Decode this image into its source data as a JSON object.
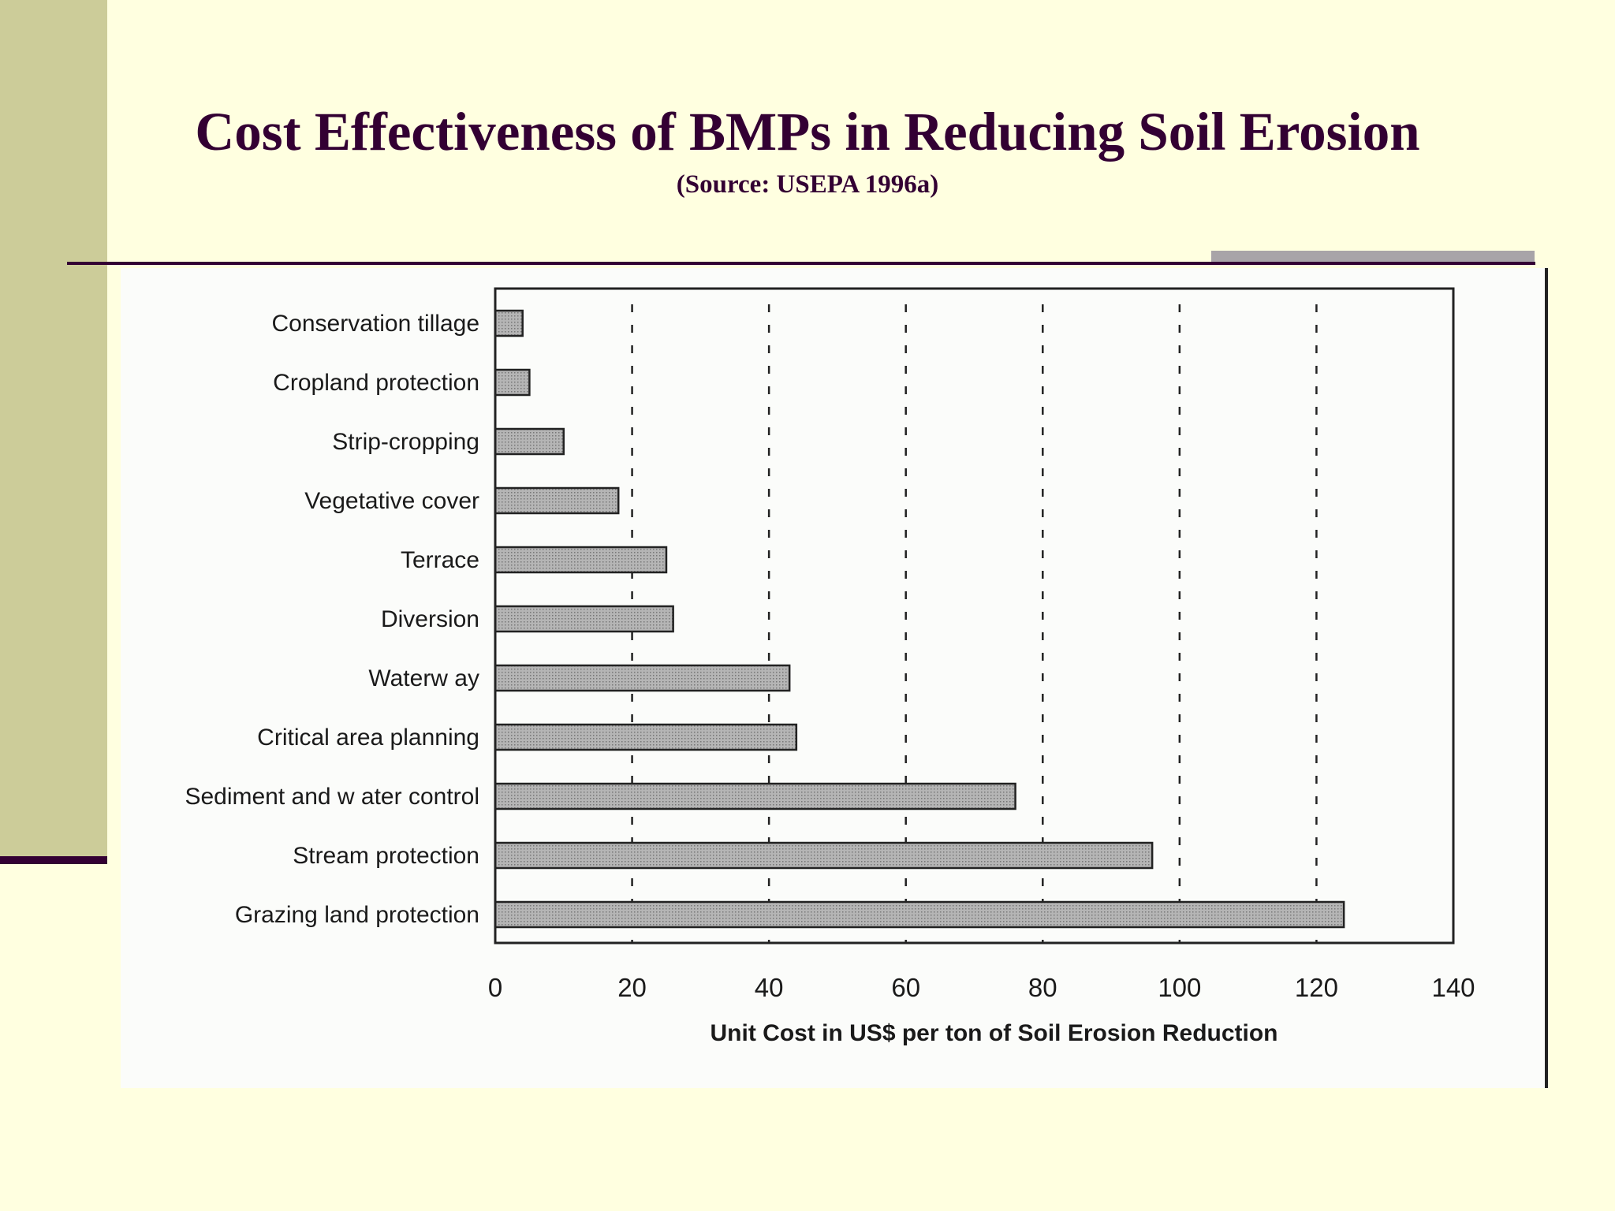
{
  "slide": {
    "title": "Cost Effectiveness of BMPs in Reducing Soil Erosion",
    "subtitle": "(Source: USEPA 1996a)"
  },
  "colors": {
    "background": "#ffffe0",
    "left_band": "#cccc99",
    "title": "#330033",
    "bar_fill": "#b5b5b5",
    "bar_stroke": "#222222"
  },
  "chart_data": {
    "type": "bar",
    "orientation": "horizontal",
    "categories": [
      "Conservation tillage",
      "Cropland protection",
      "Strip-cropping",
      "Vegetative cover",
      "Terrace",
      "Diversion",
      "Waterw ay",
      "Critical area planning",
      "Sediment and w ater control",
      "Stream protection",
      "Grazing land protection"
    ],
    "values": [
      4,
      5,
      10,
      18,
      25,
      26,
      43,
      44,
      76,
      96,
      124
    ],
    "xlabel": "Unit Cost in US$ per ton of Soil Erosion Reduction",
    "xlim": [
      0,
      140
    ],
    "xticks": [
      "0",
      "20",
      "40",
      "60",
      "80",
      "100",
      "120",
      "140"
    ],
    "grid": "vertical dashed"
  }
}
